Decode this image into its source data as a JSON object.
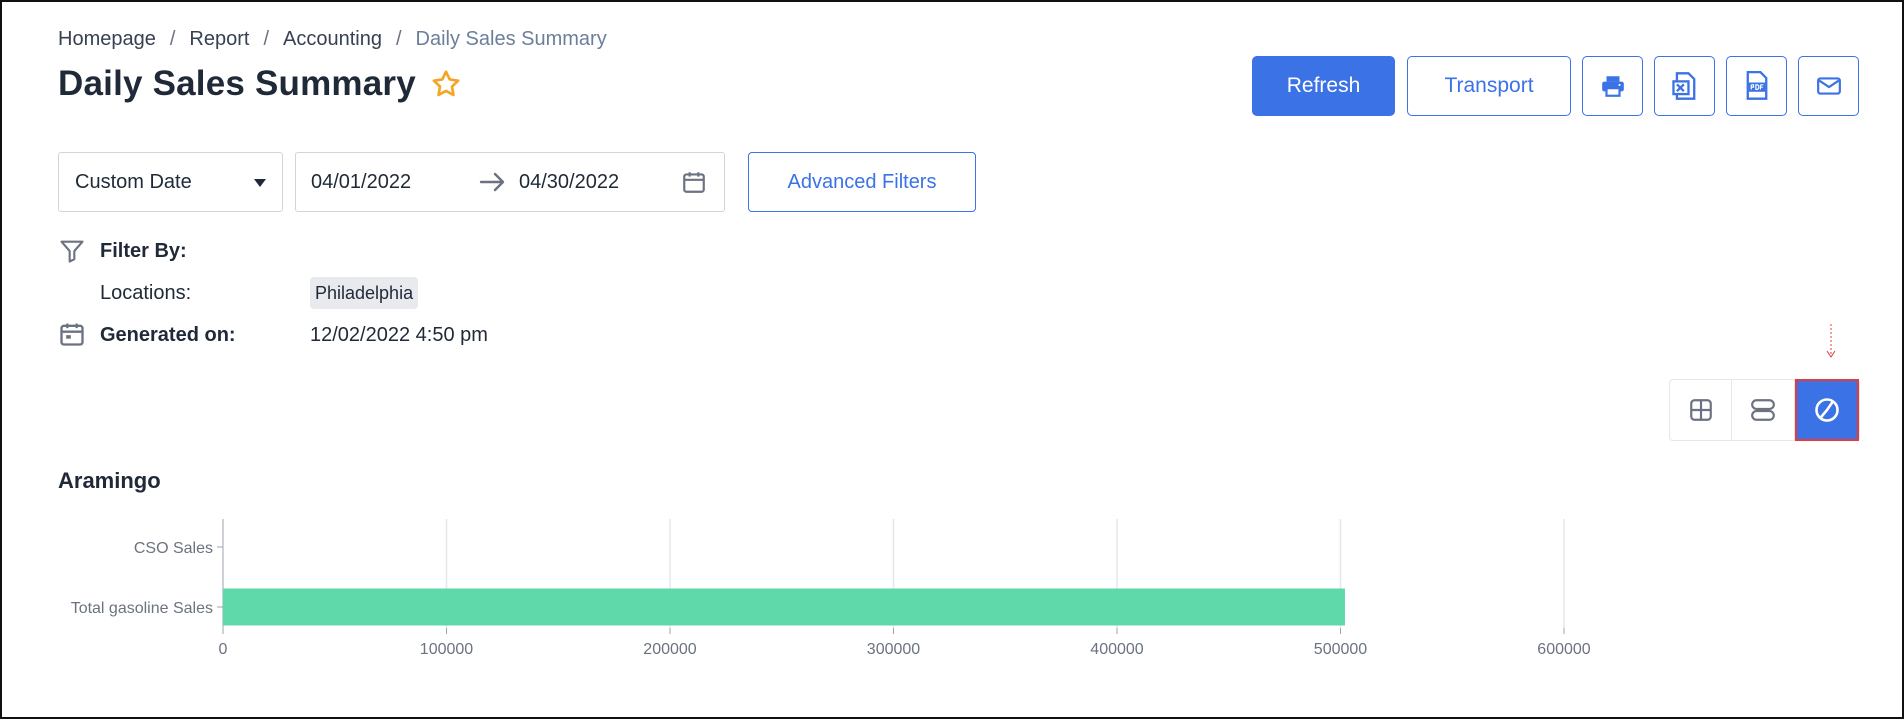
{
  "breadcrumb": [
    "Homepage",
    "Report",
    "Accounting",
    "Daily Sales Summary"
  ],
  "breadcrumb_separator": "/",
  "page": {
    "title": "Daily Sales Summary"
  },
  "toolbar": {
    "refresh_label": "Refresh",
    "transport_label": "Transport",
    "icon_buttons": [
      "printer-icon",
      "excel-icon",
      "pdf-icon",
      "email-icon"
    ]
  },
  "filters": {
    "date_mode": "Custom Date",
    "start_date": "04/01/2022",
    "end_date": "04/30/2022",
    "advanced_label": "Advanced Filters"
  },
  "filter_info": {
    "filter_by_label": "Filter By:",
    "locations_label": "Locations:",
    "location_value": "Philadelphia",
    "generated_label": "Generated on:",
    "generated_value": "12/02/2022 4:50 pm"
  },
  "view_toggle": {
    "options": [
      "grid-view-icon",
      "list-view-icon",
      "chart-view-icon"
    ],
    "active": "chart-view-icon"
  },
  "colors": {
    "accent": "#3b72e6",
    "bar": "#5fd9a9",
    "highlight": "#e23b3b",
    "star": "#f5a524"
  },
  "chart_data": {
    "type": "bar",
    "orientation": "horizontal",
    "title": "Aramingo",
    "categories": [
      "CSO Sales",
      "Total gasoline Sales"
    ],
    "values": [
      0,
      502000
    ],
    "xlim": [
      0,
      600000
    ],
    "xticks": [
      "0",
      "100000",
      "200000",
      "300000",
      "400000",
      "500000",
      "600000"
    ],
    "grid": true
  }
}
